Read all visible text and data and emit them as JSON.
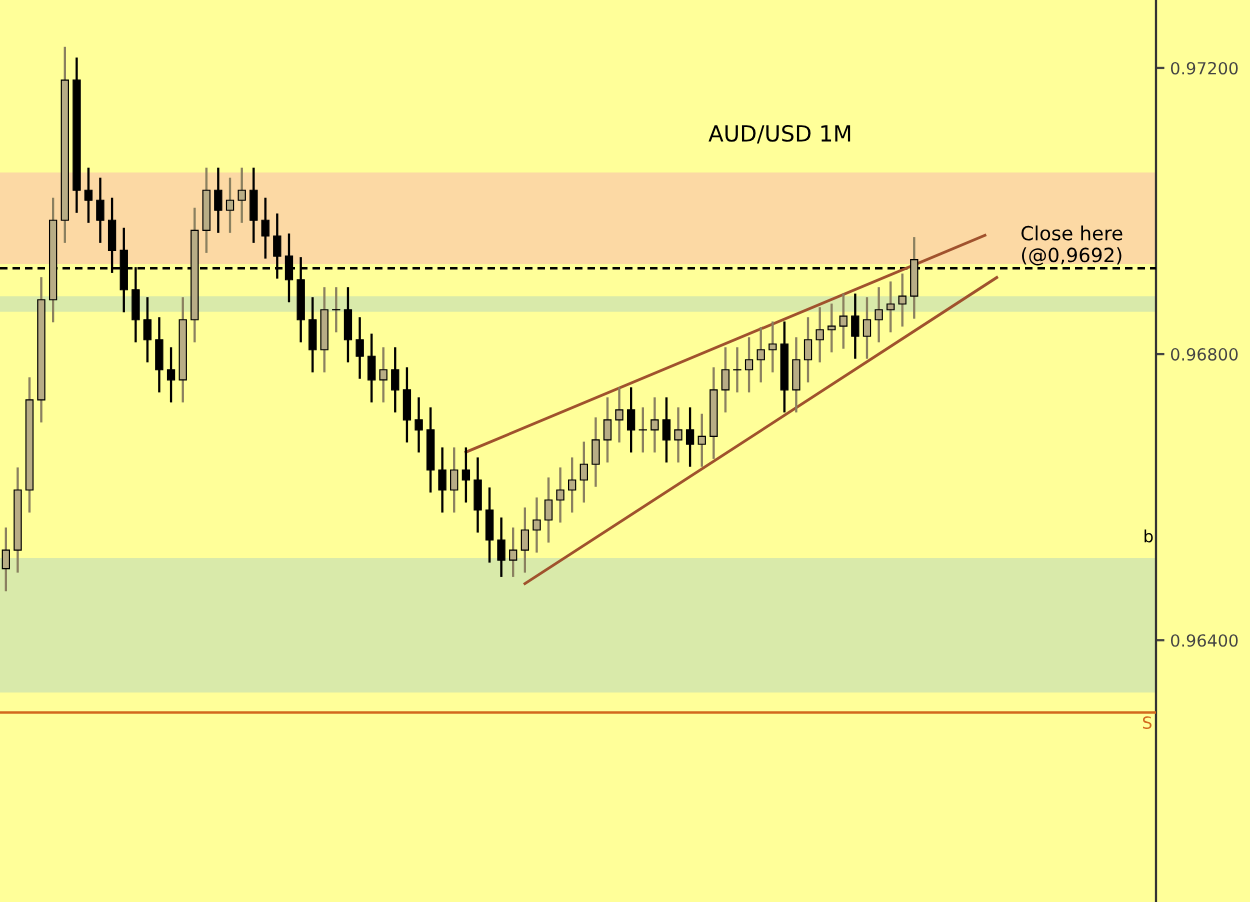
{
  "chart_data": {
    "type": "candlestick",
    "title": "AUD/USD 1M",
    "categories": [
      null,
      null,
      null,
      null,
      null,
      null,
      null,
      null,
      null,
      null,
      null,
      null,
      null,
      null,
      null,
      null,
      null,
      null,
      null,
      null,
      null,
      null,
      null,
      null,
      null,
      null,
      null,
      null,
      null,
      null,
      null,
      null,
      null,
      null,
      null,
      null,
      null,
      null,
      null,
      null,
      null,
      null,
      null,
      null,
      null,
      null,
      null,
      null,
      null,
      null,
      null,
      null,
      null,
      null,
      null,
      null,
      null,
      null,
      null,
      null,
      null,
      null,
      null,
      null,
      null,
      null,
      null,
      null,
      null,
      null,
      null,
      null,
      null,
      null,
      null,
      null,
      null,
      null,
      null,
      null,
      null,
      null,
      null,
      null,
      null,
      null,
      null,
      null,
      null,
      null,
      null,
      null,
      null,
      null,
      null,
      null,
      null,
      null
    ],
    "ohlc": [
      [
        0.965,
        0.96556,
        0.9647,
        0.96526
      ],
      [
        0.96526,
        0.9664,
        0.96496,
        0.9661
      ],
      [
        0.9661,
        0.96766,
        0.9658,
        0.96736
      ],
      [
        0.96736,
        0.96906,
        0.96706,
        0.96876
      ],
      [
        0.96876,
        0.97017,
        0.96846,
        0.96987
      ],
      [
        0.96987,
        0.97228,
        0.96957,
        0.97183
      ],
      [
        0.97183,
        0.97213,
        0.96999,
        0.97029
      ],
      [
        0.97029,
        0.97059,
        0.96985,
        0.97015
      ],
      [
        0.97015,
        0.97045,
        0.96957,
        0.96987
      ],
      [
        0.96987,
        0.97017,
        0.96915,
        0.96945
      ],
      [
        0.96945,
        0.96975,
        0.9686,
        0.9689
      ],
      [
        0.9689,
        0.9692,
        0.96818,
        0.96848
      ],
      [
        0.96848,
        0.96878,
        0.9679,
        0.9682
      ],
      [
        0.9682,
        0.9685,
        0.96748,
        0.96778
      ],
      [
        0.96778,
        0.96808,
        0.96734,
        0.96764
      ],
      [
        0.96764,
        0.96878,
        0.96734,
        0.96848
      ],
      [
        0.96848,
        0.97003,
        0.96818,
        0.96973
      ],
      [
        0.96973,
        0.97059,
        0.96943,
        0.97029
      ],
      [
        0.97029,
        0.97059,
        0.96971,
        0.97001
      ],
      [
        0.97001,
        0.97045,
        0.96971,
        0.97015
      ],
      [
        0.97015,
        0.97059,
        0.96985,
        0.97029
      ],
      [
        0.97029,
        0.97059,
        0.96957,
        0.96987
      ],
      [
        0.96987,
        0.97017,
        0.96935,
        0.96965
      ],
      [
        0.96965,
        0.96995,
        0.96907,
        0.96937
      ],
      [
        0.96937,
        0.96967,
        0.96874,
        0.96904
      ],
      [
        0.96904,
        0.96934,
        0.96818,
        0.96848
      ],
      [
        0.96848,
        0.96878,
        0.96776,
        0.96806
      ],
      [
        0.96806,
        0.96892,
        0.96776,
        0.96862
      ],
      [
        0.96862,
        0.96892,
        0.96832,
        0.96862
      ],
      [
        0.96862,
        0.96892,
        0.9679,
        0.9682
      ],
      [
        0.9682,
        0.9685,
        0.96767,
        0.96797
      ],
      [
        0.96797,
        0.96827,
        0.96734,
        0.96764
      ],
      [
        0.96764,
        0.96808,
        0.96734,
        0.96778
      ],
      [
        0.96778,
        0.96808,
        0.9672,
        0.9675
      ],
      [
        0.9675,
        0.9678,
        0.96678,
        0.96708
      ],
      [
        0.96708,
        0.96738,
        0.96664,
        0.96694
      ],
      [
        0.96694,
        0.96724,
        0.96608,
        0.96638
      ],
      [
        0.96638,
        0.96668,
        0.9658,
        0.9661
      ],
      [
        0.9661,
        0.96668,
        0.9658,
        0.96638
      ],
      [
        0.96638,
        0.96668,
        0.96594,
        0.96624
      ],
      [
        0.96624,
        0.96654,
        0.96552,
        0.96582
      ],
      [
        0.96582,
        0.96612,
        0.9651,
        0.9654
      ],
      [
        0.9654,
        0.9657,
        0.9649,
        0.96512
      ],
      [
        0.96512,
        0.96556,
        0.9649,
        0.96526
      ],
      [
        0.96526,
        0.96584,
        0.96496,
        0.96554
      ],
      [
        0.96554,
        0.96598,
        0.96524,
        0.96568
      ],
      [
        0.96568,
        0.96626,
        0.96538,
        0.96596
      ],
      [
        0.96596,
        0.9664,
        0.96566,
        0.9661
      ],
      [
        0.9661,
        0.96654,
        0.9658,
        0.96624
      ],
      [
        0.96624,
        0.96676,
        0.96594,
        0.96646
      ],
      [
        0.96646,
        0.9671,
        0.96616,
        0.9668
      ],
      [
        0.9668,
        0.96738,
        0.9665,
        0.96708
      ],
      [
        0.96708,
        0.96752,
        0.96678,
        0.96722
      ],
      [
        0.96722,
        0.96752,
        0.96664,
        0.96694
      ],
      [
        0.96694,
        0.96724,
        0.96664,
        0.96694
      ],
      [
        0.96694,
        0.96738,
        0.96664,
        0.96708
      ],
      [
        0.96708,
        0.96738,
        0.9665,
        0.9668
      ],
      [
        0.9668,
        0.96724,
        0.9665,
        0.96694
      ],
      [
        0.96694,
        0.96724,
        0.96644,
        0.96674
      ],
      [
        0.96674,
        0.96715,
        0.96644,
        0.96685
      ],
      [
        0.96685,
        0.9678,
        0.96655,
        0.9675
      ],
      [
        0.9675,
        0.96808,
        0.9672,
        0.96778
      ],
      [
        0.96778,
        0.96808,
        0.96748,
        0.96778
      ],
      [
        0.96778,
        0.96822,
        0.96748,
        0.96792
      ],
      [
        0.96792,
        0.96836,
        0.96762,
        0.96806
      ],
      [
        0.96806,
        0.96844,
        0.96776,
        0.96814
      ],
      [
        0.96814,
        0.96844,
        0.9672,
        0.9675
      ],
      [
        0.9675,
        0.96822,
        0.9672,
        0.96792
      ],
      [
        0.96792,
        0.9685,
        0.96762,
        0.9682
      ],
      [
        0.9682,
        0.96864,
        0.9679,
        0.96834
      ],
      [
        0.96834,
        0.96869,
        0.96804,
        0.96839
      ],
      [
        0.96839,
        0.96883,
        0.96809,
        0.96853
      ],
      [
        0.96853,
        0.96883,
        0.96795,
        0.96825
      ],
      [
        0.96825,
        0.96878,
        0.96795,
        0.96848
      ],
      [
        0.96848,
        0.96892,
        0.96818,
        0.96862
      ],
      [
        0.96862,
        0.969,
        0.96832,
        0.9687
      ],
      [
        0.9687,
        0.96911,
        0.9684,
        0.96881
      ],
      [
        0.96881,
        0.96962,
        0.96851,
        0.96932
      ],
      null,
      null,
      null,
      null,
      null,
      null,
      null,
      null,
      null,
      null,
      null,
      null,
      null,
      null,
      null,
      null,
      null,
      null,
      null,
      null
    ],
    "series": [
      {
        "type": "line",
        "color": "#a0522d",
        "values": [
          null,
          null,
          null,
          null,
          null,
          null,
          null,
          null,
          null,
          null,
          null,
          null,
          null,
          null,
          null,
          null,
          null,
          null,
          null,
          null,
          null,
          null,
          null,
          null,
          null,
          null,
          null,
          null,
          null,
          null,
          null,
          null,
          null,
          null,
          null,
          null,
          null,
          null,
          null,
          0.96663,
          null,
          null,
          null,
          null,
          null,
          null,
          null,
          null,
          null,
          null,
          null,
          null,
          null,
          null,
          null,
          null,
          null,
          null,
          null,
          null,
          null,
          null,
          null,
          null,
          null,
          null,
          null,
          null,
          null,
          null,
          null,
          null,
          null,
          null,
          null,
          null,
          null,
          null,
          null,
          null,
          null,
          null,
          null,
          0.96966,
          null,
          null,
          null,
          null,
          null,
          null,
          null,
          null,
          null,
          null,
          null,
          null,
          null,
          null
        ]
      },
      {
        "type": "line",
        "color": "#a0522d",
        "values": [
          null,
          null,
          null,
          null,
          null,
          null,
          null,
          null,
          null,
          null,
          null,
          null,
          null,
          null,
          null,
          null,
          null,
          null,
          null,
          null,
          null,
          null,
          null,
          null,
          null,
          null,
          null,
          null,
          null,
          null,
          null,
          null,
          null,
          null,
          null,
          null,
          null,
          null,
          null,
          null,
          null,
          null,
          null,
          null,
          0.96479,
          null,
          null,
          null,
          null,
          null,
          null,
          null,
          null,
          null,
          null,
          null,
          null,
          null,
          null,
          null,
          null,
          null,
          null,
          null,
          null,
          null,
          null,
          null,
          null,
          null,
          null,
          null,
          null,
          null,
          null,
          null,
          null,
          null,
          null,
          null,
          null,
          null,
          null,
          null,
          0.96907,
          null,
          null,
          null,
          null,
          null,
          null,
          null,
          null,
          null,
          null,
          null,
          null,
          null
        ]
      }
    ],
    "ylim": [
      0.96034,
      0.97295
    ],
    "yticks": [
      {
        "value": 0.972,
        "label": "0.97200"
      },
      {
        "value": 0.968,
        "label": "0.96800"
      },
      {
        "value": 0.964,
        "label": "0.96400"
      }
    ],
    "tick_labels": "y",
    "bands": [
      {
        "axis": "y",
        "from": 0.96926,
        "to": 0.97054,
        "color": "#fcd9a4"
      },
      {
        "axis": "y",
        "from": 0.96859,
        "to": 0.96881,
        "color": "#d9eaaa"
      },
      {
        "axis": "y",
        "from": 0.96327,
        "to": 0.96515,
        "color": "#d9eaaa"
      }
    ],
    "ref_lines": [
      {
        "axis": "y",
        "value": 0.9692,
        "label": "Close here\n(@0,9692)",
        "color": "#000000",
        "line_style": "dashed"
      },
      {
        "axis": "y",
        "value": 0.96299,
        "label": "S",
        "color": "#d2691e",
        "line_style": "solid"
      }
    ],
    "annotations": [
      "b"
    ],
    "grid": false
  }
}
